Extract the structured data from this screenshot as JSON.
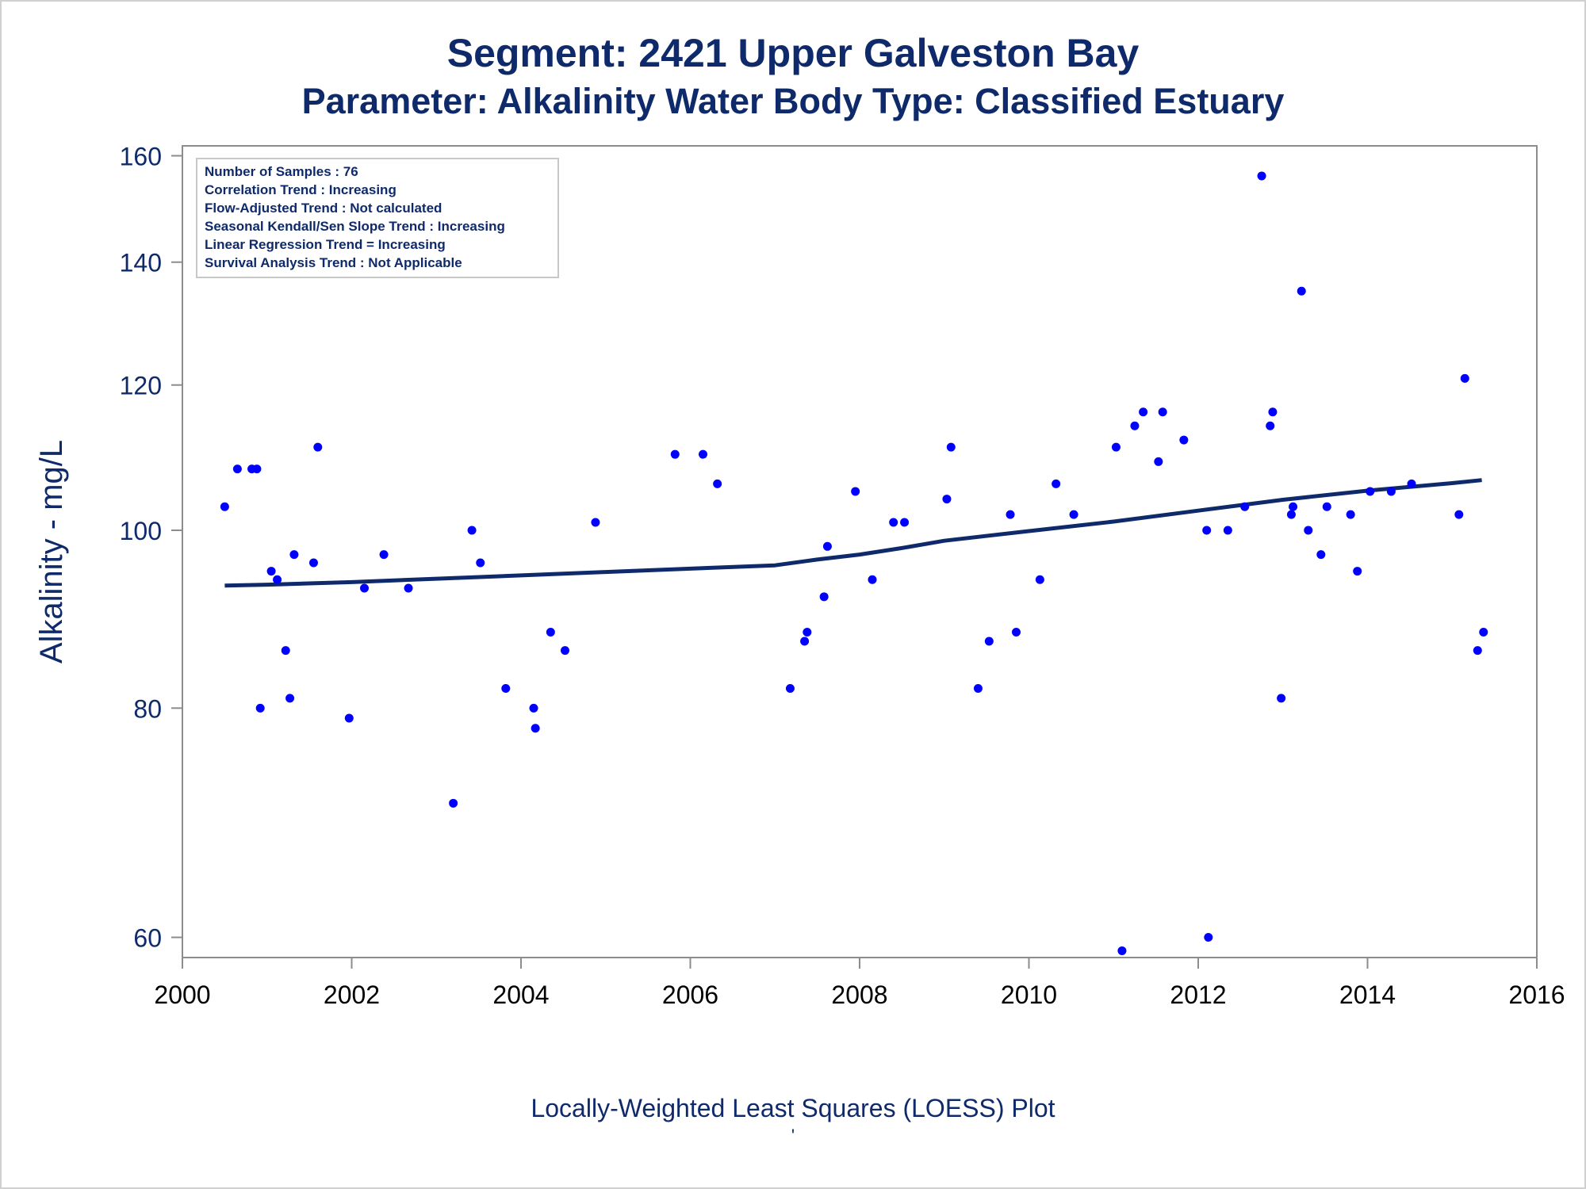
{
  "titles": {
    "line1": "Segment: 2421  Upper Galveston Bay",
    "line2": "Parameter: Alkalinity   Water Body Type: Classified Estuary"
  },
  "footnotes": {
    "line1": "Locally-Weighted Least Squares (LOESS) Plot",
    "line2": "'"
  },
  "stats_box": [
    "Number of Samples : 76",
    "Correlation Trend : Increasing",
    "Flow-Adjusted Trend : Not calculated",
    "Seasonal Kendall/Sen Slope Trend : Increasing",
    "Linear Regression Trend = Increasing",
    "Survival Analysis Trend : Not Applicable"
  ],
  "colors": {
    "text": "#0f2a6b",
    "points": "#0000ff",
    "loess_line": "#0f2a6b",
    "axis": "#8c8c8c"
  },
  "chart_data": {
    "type": "scatter",
    "xlabel": "",
    "ylabel": "Alkalinity - mg/L",
    "x_scale": "linear",
    "y_scale": "log",
    "xlim": [
      2000,
      2016
    ],
    "ylim": [
      58.5,
      162
    ],
    "x_ticks": [
      2000,
      2002,
      2004,
      2006,
      2008,
      2010,
      2012,
      2014,
      2016
    ],
    "y_ticks": [
      60,
      80,
      100,
      120,
      140,
      160
    ],
    "grid": false,
    "series": [
      {
        "kind": "points",
        "x": [
          2000.5,
          2000.65,
          2000.82,
          2000.88,
          2000.92,
          2001.05,
          2001.12,
          2001.22,
          2001.27,
          2001.32,
          2001.55,
          2001.6,
          2001.97,
          2002.15,
          2002.38,
          2002.67,
          2003.2,
          2003.42,
          2003.52,
          2003.82,
          2004.15,
          2004.17,
          2004.35,
          2004.52,
          2004.88,
          2005.82,
          2006.15,
          2006.32,
          2007.18,
          2007.35,
          2007.38,
          2007.58,
          2007.62,
          2007.95,
          2008.15,
          2008.4,
          2008.53,
          2009.03,
          2009.08,
          2009.4,
          2009.53,
          2009.78,
          2009.85,
          2010.13,
          2010.32,
          2010.53,
          2011.03,
          2011.1,
          2011.25,
          2011.35,
          2011.53,
          2011.58,
          2011.83,
          2012.1,
          2012.12,
          2012.35,
          2012.55,
          2012.75,
          2012.85,
          2012.88,
          2012.98,
          2013.1,
          2013.12,
          2013.22,
          2013.3,
          2013.45,
          2013.52,
          2013.8,
          2013.88,
          2014.03,
          2014.28,
          2014.52,
          2015.08,
          2015.15,
          2015.3,
          2015.37
        ],
        "y": [
          103,
          108,
          108,
          108,
          80,
          95,
          94,
          86,
          81,
          97,
          96,
          111,
          79,
          93,
          97,
          93,
          71,
          100,
          96,
          82,
          80,
          78,
          88,
          86,
          101,
          110,
          110,
          106,
          82,
          87,
          88,
          92,
          98,
          105,
          94,
          101,
          101,
          104,
          111,
          82,
          87,
          102,
          88,
          94,
          106,
          102,
          111,
          59,
          114,
          116,
          109,
          116,
          112,
          100,
          60,
          100,
          103,
          156,
          114,
          116,
          81,
          102,
          103,
          135,
          100,
          97,
          103,
          102,
          95,
          105,
          105,
          106,
          102,
          121,
          86,
          88
        ]
      },
      {
        "kind": "loess_line",
        "x": [
          2000.5,
          2001.0,
          2002.0,
          2003.0,
          2004.0,
          2005.0,
          2006.0,
          2007.0,
          2007.5,
          2008.0,
          2008.5,
          2009.0,
          2010.0,
          2011.0,
          2012.0,
          2013.0,
          2014.0,
          2015.0,
          2015.35
        ],
        "y": [
          93.3,
          93.4,
          93.7,
          94.1,
          94.5,
          94.9,
          95.3,
          95.7,
          96.4,
          97.0,
          97.8,
          98.7,
          99.9,
          101.1,
          102.5,
          103.9,
          105.1,
          106.1,
          106.5
        ]
      }
    ]
  }
}
